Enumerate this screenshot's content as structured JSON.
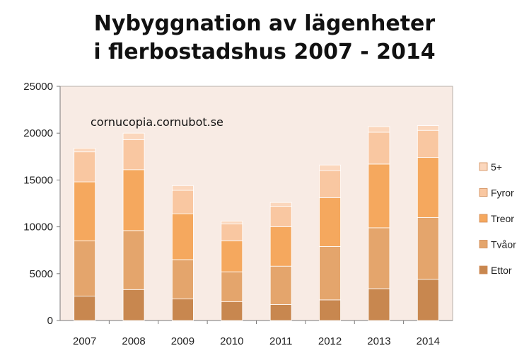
{
  "chart_data": {
    "type": "bar",
    "stacked": true,
    "title_lines": [
      "Nybyggnation av lägenheter",
      "i flerbostadshus 2007 - 2014"
    ],
    "annotation": "cornucopia.cornubot.se",
    "categories": [
      "2007",
      "2008",
      "2009",
      "2010",
      "2011",
      "2012",
      "2013",
      "2014"
    ],
    "y_ticks": [
      "0",
      "5000",
      "10000",
      "15000",
      "20000",
      "25000"
    ],
    "ylim": [
      0,
      25000
    ],
    "grid": false,
    "legend_position": "right",
    "plot_background": "#f8ebe4",
    "series": [
      {
        "name": "Ettor",
        "color": "#c8874f",
        "values": [
          2600,
          3300,
          2300,
          2000,
          1700,
          2200,
          3400,
          4400
        ]
      },
      {
        "name": "Tvåor",
        "color": "#e4a56c",
        "values": [
          5900,
          6300,
          4200,
          3200,
          4100,
          5700,
          6500,
          6600
        ]
      },
      {
        "name": "Treor",
        "color": "#f5a85e",
        "values": [
          6300,
          6500,
          4900,
          3300,
          4200,
          5200,
          6800,
          6400
        ]
      },
      {
        "name": "Fyror",
        "color": "#f9c7a1",
        "values": [
          3200,
          3200,
          2500,
          1800,
          2200,
          2900,
          3400,
          2900
        ]
      },
      {
        "name": "5+",
        "color": "#fbd7bd",
        "values": [
          400,
          700,
          500,
          300,
          400,
          600,
          600,
          500
        ]
      }
    ]
  }
}
